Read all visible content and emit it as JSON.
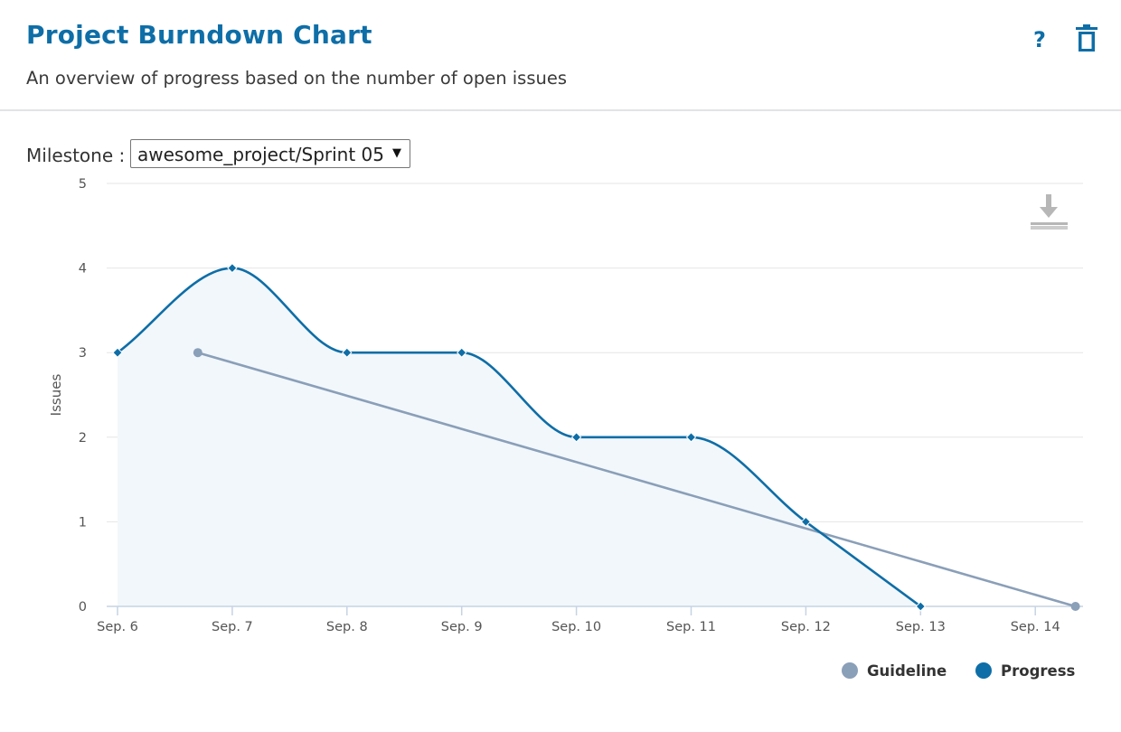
{
  "header": {
    "title": "Project Burndown Chart",
    "subtitle": "An overview of progress based on the number of open issues",
    "help_label": "?",
    "help_icon": "question-mark-icon",
    "delete_icon": "trash-icon"
  },
  "controls": {
    "milestone_label": "Milestone :",
    "milestone_value": "awesome_project/Sprint 05",
    "milestone_arrow": "▼"
  },
  "colors": {
    "accent": "#0e6ea7",
    "progress": "#0e6ea7",
    "guideline": "#8a9fb8",
    "area_fill": "#f2f7fb",
    "grid": "#e6e6e6"
  },
  "chart_data": {
    "type": "line",
    "ylabel": "Issues",
    "xlabel": "",
    "ylim": [
      0,
      5
    ],
    "yticks": [
      "0",
      "1",
      "2",
      "3",
      "4",
      "5"
    ],
    "categories": [
      "Sep. 6",
      "Sep. 7",
      "Sep. 8",
      "Sep. 9",
      "Sep. 10",
      "Sep. 11",
      "Sep. 12",
      "Sep. 13",
      "Sep. 14"
    ],
    "grid": true,
    "legend_position": "bottom-right",
    "series": [
      {
        "name": "Guideline",
        "color": "#8a9fb8",
        "marker": "circle",
        "points": [
          {
            "x": 6.7,
            "y": 3
          },
          {
            "x": 14.35,
            "y": 0
          }
        ]
      },
      {
        "name": "Progress",
        "color": "#0e6ea7",
        "marker": "diamond",
        "smooth": true,
        "area": true,
        "points": [
          {
            "x": 6,
            "y": 3
          },
          {
            "x": 7,
            "y": 4
          },
          {
            "x": 8,
            "y": 3
          },
          {
            "x": 9,
            "y": 3
          },
          {
            "x": 10,
            "y": 2
          },
          {
            "x": 11,
            "y": 2
          },
          {
            "x": 12,
            "y": 1
          },
          {
            "x": 13,
            "y": 0
          }
        ]
      }
    ],
    "download_icon": "download-icon"
  }
}
